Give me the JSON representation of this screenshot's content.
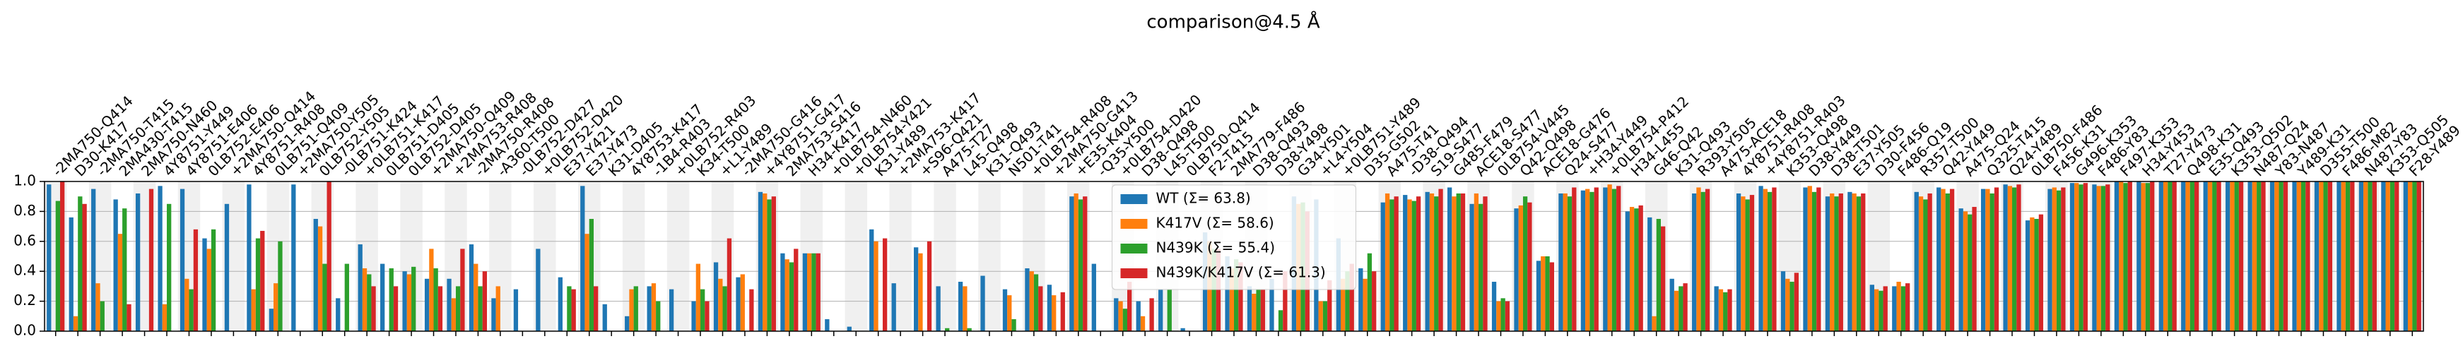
{
  "chart_data": {
    "type": "bar",
    "title": "comparison@4.5 Å",
    "categories": [
      "-2MA750-Q414",
      "D30-K417",
      "-2MA750-T415",
      "2MA430-T415",
      "2MA750-N460",
      "4Y8751-Y449",
      "4Y8751-E406",
      "0LB752-E406",
      "+2MA750-Q414",
      "4Y8751-R408",
      "0LB751-Q409",
      "+2MA750-Y505",
      "0LB752-Y505",
      "-0LB751-K424",
      "+0LB751-K417",
      "0LB751-D405",
      "0LB752-D405",
      "+2MA750-Q409",
      "+2MA753-R408",
      "-2MA750-R408",
      "-A360-T500",
      "-0LB752-D427",
      "+0LB752-D420",
      "E37-Y421",
      "E37-Y473",
      "K31-D405",
      "4Y8753-K417",
      "-1B4-R403",
      "+0LB752-R403",
      "K34-T500",
      "+L1-Y489",
      "-2MA750-G416",
      "+4Y8751-G417",
      "2MA753-S416",
      "H34-K417",
      "+0LB754-N460",
      "+0LB754-Y421",
      "K31-Y489",
      "+2MA753-K417",
      "+S96-Q421",
      "A475-T27",
      "L45-Q498",
      "K31-Q493",
      "N501-T41",
      "+0LB754-R408",
      "+2MA750-G413",
      "+E35-K404",
      "-Q35-Y500",
      "+0LB754-D420",
      "D38-Q498",
      "L45-T500",
      "0LB750-Q414",
      "F2-T415",
      "2MA779-F486",
      "D38-Q493",
      "D38-Y498",
      "G34-Y501",
      "+L4-Y504",
      "+0LB751-Y489",
      "D35-G502",
      "A475-T41",
      "-D38-Q494",
      "S19-S477",
      "G485-F479",
      "ACE18-S477",
      "0LB754-V445",
      "Q42-Q498",
      "ACE18-G476",
      "Q24-S477",
      "+H34-Y449",
      "+0LB754-P412",
      "H34-L455",
      "G46-Q42",
      "K31-Q493",
      "R393-Y505",
      "A475-ACE18",
      "4Y8751-R408",
      "+4Y8751-R403",
      "K353-Q498",
      "D38-Y449",
      "D38-T501",
      "E37-Y505",
      "D30-F456",
      "F486-Q19",
      "R357-T500",
      "Q42-Y449",
      "A475-Q24",
      "Q325-T415",
      "Q24-Y489",
      "0LB750-F486",
      "F456-K31",
      "G496-K353",
      "F486-Y83",
      "F497-K353",
      "H34-Y453",
      "T27-Y473",
      "Q498-K31",
      "E35-Q493",
      "K353-Q502",
      "N487-Q24",
      "Y83-N487",
      "Y489-K31",
      "D355-T500",
      "F486-M82",
      "N487-Y83",
      "K353-Q505",
      "F28-Y489"
    ],
    "category_colors": [
      "#2ca02c",
      "#000000",
      "#2ca02c",
      "#000000",
      "#000000",
      "#000000",
      "#000000",
      "#000000",
      "#2ca02c",
      "#000000",
      "#000000",
      "#2ca02c",
      "#000000",
      "#2ca02c",
      "#2ca02c",
      "#000000",
      "#000000",
      "#2ca02c",
      "#2ca02c",
      "#1f77b4",
      "#ff7f0e",
      "#2ca02c",
      "#2ca02c",
      "#000000",
      "#000000",
      "#000000",
      "#2ca02c",
      "#2ca02c",
      "#2ca02c",
      "#000000",
      "#2ca02c",
      "#ff7f0e",
      "#ff7f0e",
      "#000000",
      "#000000",
      "#2ca02c",
      "#1f77b4",
      "#000000",
      "#1f77b4",
      "#2ca02c",
      "#000000",
      "#000000",
      "#000000",
      "#000000",
      "#2ca02c",
      "#2ca02c",
      "#1f77b4",
      "#ff7f0e",
      "#2ca02c",
      "#000000",
      "#000000",
      "#000000",
      "#000000",
      "#000000",
      "#000000",
      "#000000",
      "#000000",
      "#2ca02c",
      "#1f77b4",
      "#000000",
      "#000000",
      "#ff7f0e",
      "#000000",
      "#000000",
      "#000000",
      "#000000",
      "#000000",
      "#000000",
      "#000000",
      "#2ca02c",
      "#2ca02c",
      "#000000",
      "#000000",
      "#000000",
      "#000000",
      "#000000",
      "#000000",
      "#ff7f0e",
      "#000000",
      "#000000",
      "#000000",
      "#000000",
      "#000000",
      "#000000",
      "#000000",
      "#000000",
      "#000000",
      "#000000",
      "#000000",
      "#000000",
      "#000000",
      "#000000",
      "#000000",
      "#000000",
      "#000000",
      "#000000",
      "#000000",
      "#000000",
      "#000000",
      "#000000",
      "#000000",
      "#000000",
      "#000000",
      "#000000",
      "#000000",
      "#000000",
      "#000000"
    ],
    "series": [
      {
        "name": "WT (Σ= 63.8)",
        "color": "#1f77b4",
        "values": [
          0.98,
          0.76,
          0.95,
          0.88,
          0.92,
          0.97,
          0.95,
          0.62,
          0.85,
          0.98,
          0.15,
          0.98,
          0.75,
          0.22,
          0.58,
          0.45,
          0.4,
          0.35,
          0.35,
          0.58,
          0.22,
          0.28,
          0.55,
          0.36,
          0.97,
          0.18,
          0.1,
          0.3,
          0.28,
          0.2,
          0.46,
          0.36,
          0.93,
          0.52,
          0.52,
          0.08,
          0.03,
          0.68,
          0.32,
          0.56,
          0.3,
          0.33,
          0.37,
          0.28,
          0.42,
          0.31,
          0.9,
          0.45,
          0.22,
          0.2,
          0.28,
          0.02,
          0.66,
          0.5,
          0.3,
          0.35,
          0.9,
          0.88,
          0.62,
          0.42,
          0.86,
          0.91,
          0.93,
          0.96,
          0.85,
          0.33,
          0.82,
          0.47,
          0.92,
          0.94,
          0.96,
          0.8,
          0.76,
          0.35,
          0.92,
          0.3,
          0.92,
          0.97,
          0.4,
          0.96,
          0.9,
          0.93,
          0.31,
          0.3,
          0.93,
          0.96,
          0.82,
          0.95,
          0.98,
          0.74,
          0.95,
          0.99,
          0.98,
          1,
          1,
          1,
          1,
          1,
          1,
          1,
          1,
          1,
          1,
          1,
          1,
          1,
          1
        ]
      },
      {
        "name": "K417V (Σ= 58.6)",
        "color": "#ff7f0e",
        "values": [
          0,
          0.1,
          0.32,
          0.65,
          0,
          0.18,
          0.35,
          0.55,
          0,
          0.28,
          0.32,
          0,
          0.7,
          0,
          0.42,
          0,
          0.38,
          0.55,
          0.22,
          0.45,
          0.3,
          0,
          0,
          0,
          0.65,
          0,
          0.28,
          0.32,
          0,
          0.45,
          0.35,
          0.38,
          0.92,
          0.48,
          0.52,
          0,
          0,
          0.6,
          0,
          0.52,
          0,
          0.3,
          0,
          0.24,
          0.4,
          0.24,
          0.92,
          0,
          0.2,
          0.1,
          0,
          0,
          0.6,
          0.42,
          0.25,
          0,
          0.85,
          0.2,
          0.35,
          0.35,
          0.92,
          0.88,
          0.92,
          0.9,
          0.92,
          0.2,
          0.84,
          0.5,
          0.92,
          0.95,
          0.98,
          0.83,
          0.1,
          0.27,
          0.96,
          0.28,
          0.9,
          0.95,
          0.35,
          0.97,
          0.92,
          0.92,
          0.28,
          0.33,
          0.9,
          0.95,
          0.8,
          0.95,
          0.97,
          0.76,
          0.96,
          0.99,
          0.97,
          1,
          0.99,
          1,
          1,
          1,
          1,
          1,
          1,
          1,
          1,
          1,
          1,
          1,
          1
        ]
      },
      {
        "name": "N439K (Σ= 55.4)",
        "color": "#2ca02c",
        "values": [
          0.87,
          0.9,
          0.2,
          0.82,
          0,
          0.85,
          0.28,
          0.68,
          0,
          0.62,
          0.6,
          0,
          0.45,
          0.45,
          0.38,
          0.42,
          0.43,
          0.42,
          0.3,
          0.3,
          0,
          0,
          0,
          0.3,
          0.75,
          0,
          0.3,
          0.2,
          0,
          0.28,
          0.3,
          0,
          0.88,
          0.46,
          0.52,
          0,
          0,
          0,
          0,
          0,
          0.02,
          0.02,
          0,
          0.08,
          0.38,
          0,
          0.88,
          0,
          0.15,
          0,
          0.28,
          0,
          0.55,
          0.48,
          0.28,
          0.14,
          0.86,
          0.2,
          0.4,
          0.52,
          0.88,
          0.87,
          0.9,
          0.92,
          0.85,
          0.22,
          0.9,
          0.5,
          0.9,
          0.93,
          0.95,
          0.82,
          0.75,
          0.3,
          0.93,
          0.26,
          0.88,
          0.93,
          0.33,
          0.93,
          0.9,
          0.9,
          0.27,
          0.3,
          0.88,
          0.92,
          0.78,
          0.92,
          0.96,
          0.75,
          0.94,
          0.98,
          0.97,
          0.99,
          0.99,
          1,
          1,
          1,
          1,
          1,
          1,
          1,
          1,
          1,
          1,
          1,
          1
        ]
      },
      {
        "name": "N439K/K417V (Σ= 61.3)",
        "color": "#d62728",
        "values": [
          1,
          0.85,
          0,
          0.18,
          0.95,
          0,
          0.68,
          0,
          0,
          0.67,
          0,
          0,
          1,
          0,
          0.3,
          0.3,
          0,
          0.3,
          0.55,
          0.4,
          0,
          0,
          0,
          0.28,
          0.3,
          0,
          0,
          0,
          0,
          0.2,
          0.62,
          0.28,
          0.9,
          0.55,
          0.52,
          0,
          0,
          0.62,
          0,
          0.6,
          0,
          0,
          0,
          0,
          0.3,
          0.26,
          0.9,
          0,
          0.33,
          0.22,
          0,
          0,
          0.55,
          0.46,
          0.28,
          0.4,
          0.8,
          0.34,
          0.45,
          0.4,
          0.9,
          0.9,
          0.95,
          0.92,
          0.9,
          0.2,
          0.86,
          0.46,
          0.96,
          0.96,
          0.97,
          0.84,
          0.7,
          0.32,
          0.95,
          0.28,
          0.91,
          0.96,
          0.39,
          0.96,
          0.92,
          0.92,
          0.3,
          0.32,
          0.92,
          0.95,
          0.83,
          0.96,
          0.98,
          0.78,
          0.96,
          0.99,
          0.98,
          1,
          1,
          1,
          1,
          1,
          1,
          1,
          1,
          1,
          1,
          1,
          1,
          1,
          1
        ]
      }
    ],
    "ylim": [
      0,
      1
    ],
    "yticks": [
      {
        "value": 0,
        "label": "0.0"
      },
      {
        "value": 0.2,
        "label": "0.2"
      },
      {
        "value": 0.4,
        "label": "0.4"
      },
      {
        "value": 0.6,
        "label": "0.6"
      },
      {
        "value": 0.8,
        "label": "0.8"
      },
      {
        "value": 1,
        "label": "1.0"
      }
    ],
    "grid": true,
    "legend": "upper center"
  }
}
